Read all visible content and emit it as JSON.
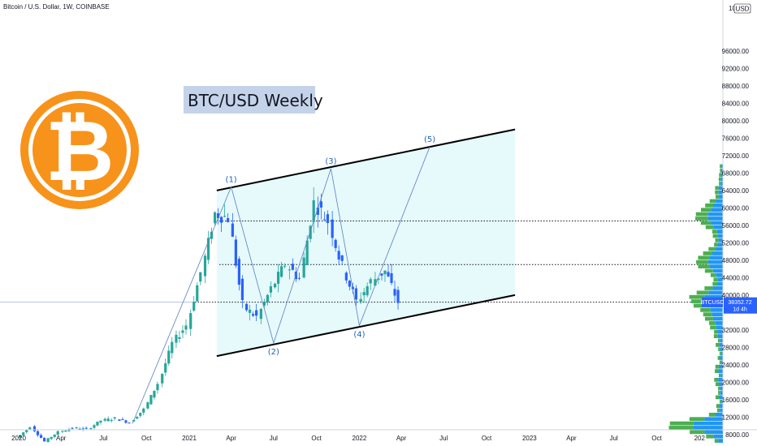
{
  "header": {
    "symbol_title": "Bitcoin / U.S. Dollar, 1W, COINBASE"
  },
  "annotation": {
    "title": "BTC/USD Weekly"
  },
  "logo": {
    "glyph": "₿",
    "outer_color": "#f7931a",
    "inner_color": "#ffffff"
  },
  "price_axis": {
    "currency_badge": "USD",
    "top_label": "10",
    "labels": [
      "96000.00",
      "92000.00",
      "88000.00",
      "84000.00",
      "80000.00",
      "76000.00",
      "72000.00",
      "68000.00",
      "64000.00",
      "60000.00",
      "56000.00",
      "52000.00",
      "48000.00",
      "44000.00",
      "40000.00",
      "32000.00",
      "28000.00",
      "24000.00",
      "20000.00",
      "16000.00",
      "12000.00",
      "8000.00"
    ],
    "values": [
      96000,
      92000,
      88000,
      84000,
      80000,
      76000,
      72000,
      68000,
      64000,
      60000,
      56000,
      52000,
      48000,
      44000,
      40000,
      32000,
      28000,
      24000,
      20000,
      16000,
      12000,
      8000
    ]
  },
  "time_axis": {
    "labels": [
      "2020",
      "Apr",
      "Jul",
      "Oct",
      "2021",
      "Apr",
      "Jul",
      "Oct",
      "2022",
      "Apr",
      "Jul",
      "Oct",
      "2023",
      "Apr",
      "Jul",
      "Oct",
      "202"
    ]
  },
  "current_price": {
    "symbol": "BTCUSD",
    "value": "38352.72",
    "countdown": "1d 4h",
    "price": 38352.72
  },
  "wave_labels": [
    "(1)",
    "(2)",
    "(3)",
    "(4)",
    "(5)"
  ],
  "colors": {
    "up": "#26a69a",
    "down": "#2962ff",
    "channel_fill": "#e0f7fa",
    "volume_profile_up": "#4caf50",
    "volume_profile_down": "#2196f3",
    "title_bg": "#c5d3ea"
  },
  "chart_data": {
    "type": "candlestick",
    "title": "Bitcoin / U.S. Dollar, 1W, COINBASE",
    "ylim": [
      6000,
      100000
    ],
    "x_range": [
      "2020-01",
      "2023-12"
    ],
    "close_series": [
      [
        "2020-01",
        7200
      ],
      [
        "2020-02",
        9800
      ],
      [
        "2020-03",
        6400
      ],
      [
        "2020-04",
        8600
      ],
      [
        "2020-05",
        9500
      ],
      [
        "2020-06",
        9200
      ],
      [
        "2020-07",
        11200
      ],
      [
        "2020-08",
        11700
      ],
      [
        "2020-09",
        10800
      ],
      [
        "2020-10",
        13800
      ],
      [
        "2020-11",
        19700
      ],
      [
        "2020-12",
        29000
      ],
      [
        "2021-01",
        33100
      ],
      [
        "2021-02",
        45200
      ],
      [
        "2021-03",
        58800
      ],
      [
        "2021-04",
        57700
      ],
      [
        "2021-05",
        37300
      ],
      [
        "2021-06",
        35000
      ],
      [
        "2021-07",
        41500
      ],
      [
        "2021-08",
        47100
      ],
      [
        "2021-09",
        43800
      ],
      [
        "2021-10",
        61300
      ],
      [
        "2021-11",
        57000
      ],
      [
        "2021-12",
        46300
      ],
      [
        "2022-01",
        38500
      ],
      [
        "2022-02",
        43200
      ],
      [
        "2022-03",
        45500
      ],
      [
        "2022-04",
        38400
      ]
    ],
    "wave_points": [
      {
        "label": "(1)",
        "date": "2021-04",
        "price": 64800
      },
      {
        "label": "(2)",
        "date": "2021-07",
        "price": 29000
      },
      {
        "label": "(3)",
        "date": "2021-11",
        "price": 69000
      },
      {
        "label": "(4)",
        "date": "2022-01",
        "price": 33000
      },
      {
        "label": "(5)",
        "date": "2022-06",
        "price": 74000
      }
    ],
    "channel": {
      "upper": [
        [
          "2021-03",
          64000
        ],
        [
          "2022-12",
          78000
        ]
      ],
      "lower": [
        [
          "2021-03",
          26000
        ],
        [
          "2022-12",
          40000
        ]
      ]
    },
    "horizontal_levels": [
      57000,
      47000,
      38352.72
    ]
  }
}
